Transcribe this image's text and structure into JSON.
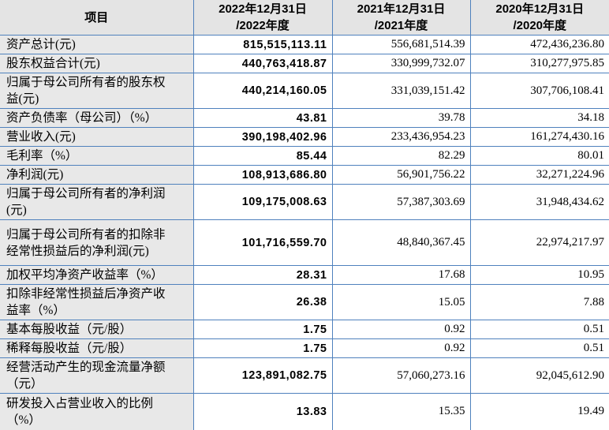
{
  "table": {
    "colors": {
      "border_blue": "#4f81bd",
      "header_bg": "#e4e4e4",
      "label_bg": "#e8e8e8"
    },
    "columns": [
      "项目",
      "2022年12月31日\n/2022年度",
      "2021年12月31日\n/2021年度",
      "2020年12月31日\n/2020年度"
    ],
    "rows": [
      {
        "label": "资产总计(元)",
        "v2022": "815,515,113.11",
        "v2021": "556,681,514.39",
        "v2020": "472,436,236.80"
      },
      {
        "label": "股东权益合计(元)",
        "v2022": "440,763,418.87",
        "v2021": "330,999,732.07",
        "v2020": "310,277,975.85"
      },
      {
        "label": "归属于母公司所有者的股东权\n益(元)",
        "v2022": "440,214,160.05",
        "v2021": "331,039,151.42",
        "v2020": "307,706,108.41"
      },
      {
        "label": "资产负债率（母公司）（%）",
        "v2022": "43.81",
        "v2021": "39.78",
        "v2020": "34.18"
      },
      {
        "label": "营业收入(元)",
        "v2022": "390,198,402.96",
        "v2021": "233,436,954.23",
        "v2020": "161,274,430.16"
      },
      {
        "label": "毛利率（%）",
        "v2022": "85.44",
        "v2021": "82.29",
        "v2020": "80.01"
      },
      {
        "label": "净利润(元)",
        "v2022": "108,913,686.80",
        "v2021": "56,901,756.22",
        "v2020": "32,271,224.96"
      },
      {
        "label": "归属于母公司所有者的净利润\n(元)",
        "v2022": "109,175,008.63",
        "v2021": "57,387,303.69",
        "v2020": "31,948,434.62"
      },
      {
        "label": "归属于母公司所有者的扣除非\n经常性损益后的净利润(元)",
        "v2022": "101,716,559.70",
        "v2021": "48,840,367.45",
        "v2020": "22,974,217.97"
      },
      {
        "label": "加权平均净资产收益率（%）",
        "v2022": "28.31",
        "v2021": "17.68",
        "v2020": "10.95"
      },
      {
        "label": "扣除非经常性损益后净资产收\n益率（%）",
        "v2022": "26.38",
        "v2021": "15.05",
        "v2020": "7.88"
      },
      {
        "label": "基本每股收益（元/股）",
        "v2022": "1.75",
        "v2021": "0.92",
        "v2020": "0.51"
      },
      {
        "label": "稀释每股收益（元/股）",
        "v2022": "1.75",
        "v2021": "0.92",
        "v2020": "0.51"
      },
      {
        "label": "经营活动产生的现金流量净额\n（元）",
        "v2022": "123,891,082.75",
        "v2021": "57,060,273.16",
        "v2020": "92,045,612.90"
      },
      {
        "label": "研发投入占营业收入的比例\n（%）",
        "v2022": "13.83",
        "v2021": "15.35",
        "v2020": "19.49"
      }
    ]
  }
}
